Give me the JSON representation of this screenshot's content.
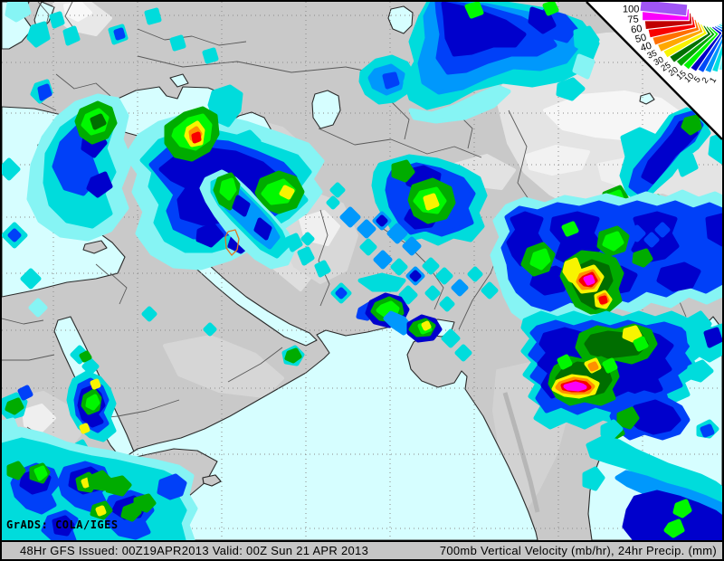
{
  "footer": {
    "left": "48Hr GFS Issued: 00Z19APR2013 Valid: 00Z Sun 21 APR 2013",
    "right": "700mb Vertical Velocity (mb/hr), 24hr Precip. (mm)"
  },
  "watermark": "GrADS: COLA/IGES",
  "legend": {
    "description": "24hr precipitation (mm) color scale fan",
    "labels": [
      "100",
      "75",
      "60",
      "50",
      "40",
      "35",
      "30",
      "25",
      "20",
      "15",
      "10",
      "5",
      "2",
      "1"
    ],
    "colors": [
      "#a055f5",
      "#fb00fb",
      "#c00000",
      "#f80000",
      "#ff7000",
      "#ffa800",
      "#f8f400",
      "#007000",
      "#00a800",
      "#00f800",
      "#0000c8",
      "#0048f8",
      "#0098fc",
      "#00e0e0",
      "#86f4f4"
    ]
  },
  "map": {
    "colors": {
      "sea": "#d6feff",
      "land": "#c9c9c9",
      "terrain_light": "#e6e6e6",
      "terrain_white": "#f6f6f6",
      "coast": "#2a2a2a",
      "border": "#5a5a5a",
      "grid": "#8a8a8a",
      "contour_orange": "#e07722",
      "c1": "#86f4f4",
      "c2": "#00dcdc",
      "c3": "#0098fc",
      "c4": "#0040f8",
      "c5": "#0000cc",
      "g1": "#00f800",
      "g2": "#00ac00",
      "g3": "#006e00",
      "y": "#f8f400",
      "o": "#ff9000",
      "r": "#f80000",
      "m": "#fa00fa"
    }
  }
}
